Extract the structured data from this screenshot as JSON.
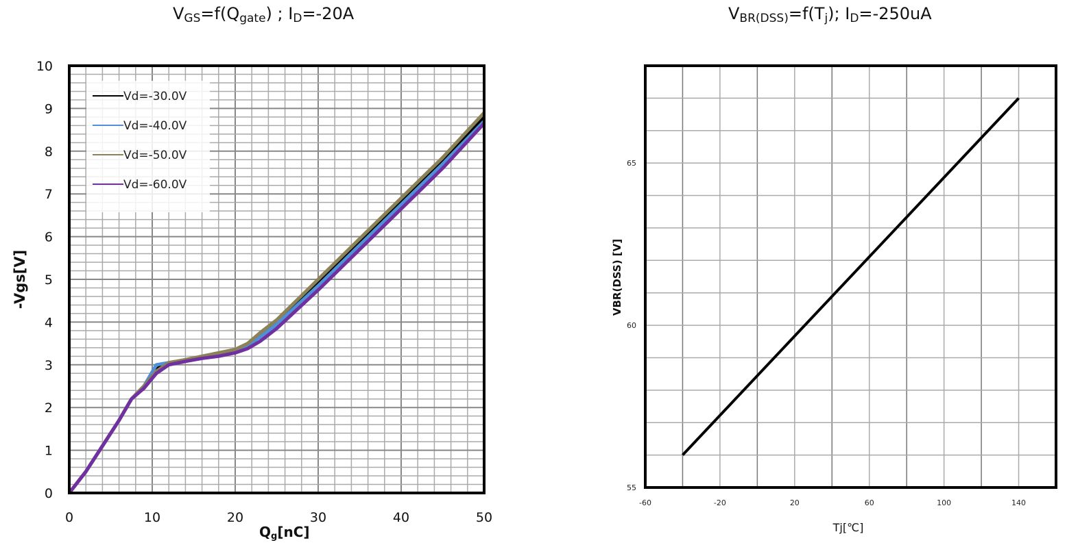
{
  "chart_data": [
    {
      "type": "line",
      "title": {
        "parts": [
          {
            "t": "V",
            "sub": false
          },
          {
            "t": "GS",
            "sub": true
          },
          {
            "t": "=f(Q",
            "sub": false
          },
          {
            "t": "gate",
            "sub": true
          },
          {
            "t": ")  ;  I",
            "sub": false
          },
          {
            "t": "D",
            "sub": true
          },
          {
            "t": "=-20A",
            "sub": false
          }
        ]
      },
      "xlabel": {
        "main": "Q",
        "sub": "g",
        "rest": "[nC]"
      },
      "ylabel": "-Vgs[V]",
      "xlim": [
        0,
        50
      ],
      "ylim": [
        0,
        10
      ],
      "xticks": [
        "0",
        "10",
        "20",
        "30",
        "40",
        "50"
      ],
      "yticks": [
        "0",
        "1",
        "2",
        "3",
        "4",
        "5",
        "6",
        "7",
        "8",
        "9",
        "10"
      ],
      "grid": true,
      "legend_position": "top-left",
      "series": [
        {
          "name": "Vd=-30.0V",
          "color": "#000000",
          "x": [
            0,
            2,
            4,
            6,
            7.5,
            9,
            10.5,
            12,
            14,
            16,
            18,
            20,
            21.5,
            23,
            25,
            30,
            35,
            40,
            45,
            50
          ],
          "y": [
            0,
            0.5,
            1.1,
            1.7,
            2.2,
            2.5,
            2.9,
            3.05,
            3.1,
            3.18,
            3.25,
            3.33,
            3.45,
            3.7,
            4.0,
            4.95,
            5.9,
            6.85,
            7.8,
            8.8
          ]
        },
        {
          "name": "Vd=-40.0V",
          "color": "#4f8fd8",
          "x": [
            0,
            2,
            4,
            6,
            7.5,
            9,
            10.5,
            12,
            14,
            16,
            18,
            20,
            21.5,
            23,
            25,
            30,
            35,
            40,
            45,
            50
          ],
          "y": [
            0,
            0.5,
            1.1,
            1.7,
            2.2,
            2.5,
            3.0,
            3.05,
            3.1,
            3.18,
            3.25,
            3.33,
            3.45,
            3.65,
            3.95,
            4.85,
            5.8,
            6.75,
            7.7,
            8.7
          ]
        },
        {
          "name": "Vd=-50.0V",
          "color": "#8c8257",
          "x": [
            0,
            2,
            4,
            6,
            7.5,
            9,
            10.5,
            12,
            14,
            16,
            18,
            20,
            21.5,
            23,
            25,
            30,
            35,
            40,
            45,
            50
          ],
          "y": [
            0,
            0.5,
            1.1,
            1.7,
            2.2,
            2.5,
            2.85,
            3.05,
            3.12,
            3.2,
            3.28,
            3.36,
            3.5,
            3.75,
            4.05,
            5.0,
            5.95,
            6.9,
            7.85,
            8.9
          ]
        },
        {
          "name": "Vd=-60.0V",
          "color": "#7030a0",
          "x": [
            0,
            2,
            4,
            6,
            7.5,
            9,
            10.5,
            12,
            14,
            16,
            18,
            20,
            21.5,
            23,
            25,
            30,
            35,
            40,
            45,
            50
          ],
          "y": [
            0,
            0.5,
            1.1,
            1.7,
            2.2,
            2.45,
            2.8,
            3.0,
            3.08,
            3.15,
            3.2,
            3.28,
            3.38,
            3.55,
            3.85,
            4.75,
            5.7,
            6.65,
            7.6,
            8.65
          ]
        }
      ]
    },
    {
      "type": "line",
      "title": {
        "parts": [
          {
            "t": "V",
            "sub": false
          },
          {
            "t": "BR(DSS)",
            "sub": true
          },
          {
            "t": "=f(T",
            "sub": false
          },
          {
            "t": "j",
            "sub": true
          },
          {
            "t": ");    I",
            "sub": false
          },
          {
            "t": "D",
            "sub": true
          },
          {
            "t": "=-250uA",
            "sub": false
          }
        ]
      },
      "xlabel": "Tj[℃]",
      "ylabel": "VBR(DSS) [V]",
      "xlim": [
        -60,
        160
      ],
      "ylim": [
        55,
        68
      ],
      "xticks": [
        "-60",
        "-20",
        "20",
        "60",
        "100",
        "140"
      ],
      "yticks": [
        "55",
        "60",
        "65"
      ],
      "grid": true,
      "series": [
        {
          "color": "#000000",
          "x": [
            -40,
            140
          ],
          "y": [
            56,
            67
          ]
        }
      ]
    }
  ]
}
